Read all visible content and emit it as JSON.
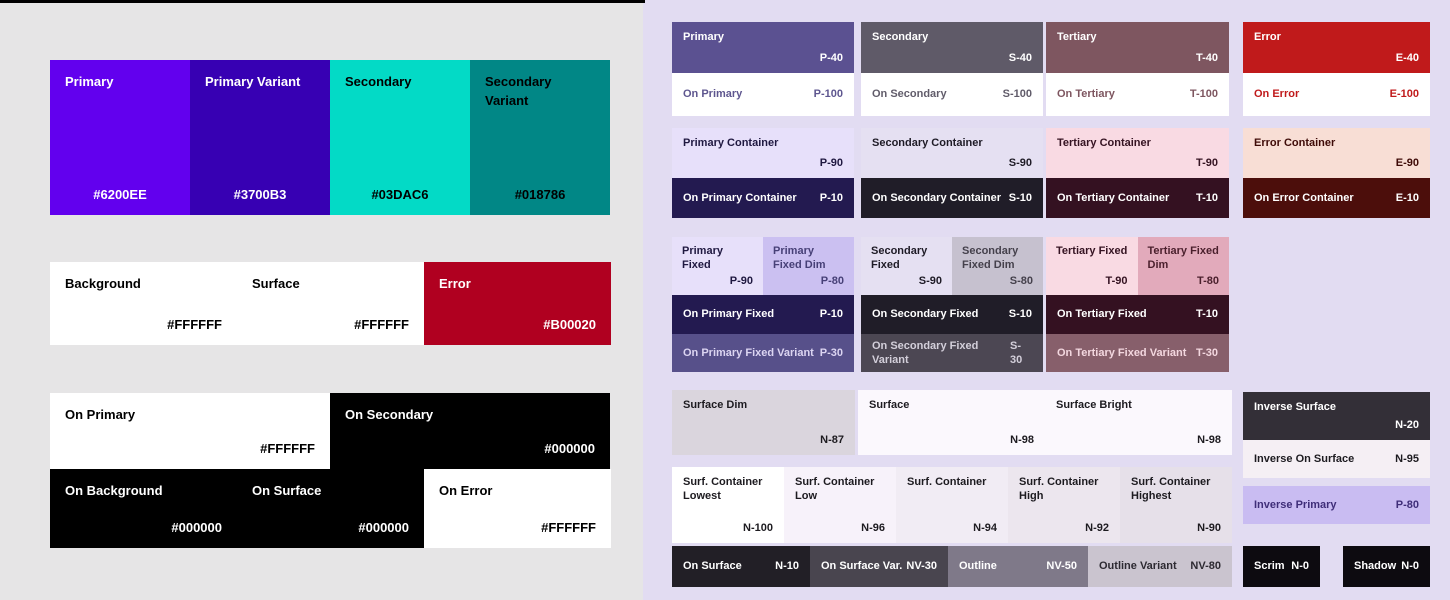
{
  "page": {
    "left_bg": "#E6E5E6",
    "right_bg": "#E2DCF2",
    "topbar_color": "#000000"
  },
  "m2": {
    "row1": [
      {
        "label": "Primary",
        "hex": "#6200EE",
        "bg": "#6200EE",
        "fg": "#FFFFFF"
      },
      {
        "label": "Primary Variant",
        "hex": "#3700B3",
        "bg": "#3700B3",
        "fg": "#FFFFFF"
      },
      {
        "label": "Secondary",
        "hex": "#03DAC6",
        "bg": "#03DAC6",
        "fg": "#000000"
      },
      {
        "label": "Secondary Variant",
        "hex": "#018786",
        "bg": "#018786",
        "fg": "#000000"
      }
    ],
    "row2": [
      {
        "label": "Background",
        "hex": "#FFFFFF",
        "bg": "#FFFFFF",
        "fg": "#000000"
      },
      {
        "label": "Surface",
        "hex": "#FFFFFF",
        "bg": "#FFFFFF",
        "fg": "#000000"
      },
      {
        "label": "Error",
        "hex": "#B00020",
        "bg": "#B00020",
        "fg": "#FFFFFF"
      }
    ],
    "row3": [
      {
        "label": "On Primary",
        "hex": "#FFFFFF",
        "bg": "#FFFFFF",
        "fg": "#000000"
      },
      {
        "label": "On Secondary",
        "hex": "#000000",
        "bg": "#000000",
        "fg": "#FFFFFF"
      }
    ],
    "row4": [
      {
        "label": "On Background",
        "hex": "#000000",
        "bg": "#000000",
        "fg": "#FFFFFF"
      },
      {
        "label": "On Surface",
        "hex": "#000000",
        "bg": "#000000",
        "fg": "#FFFFFF"
      },
      {
        "label": "On Error",
        "hex": "#FFFFFF",
        "bg": "#FFFFFF",
        "fg": "#000000"
      }
    ]
  },
  "m3": {
    "primary": {
      "main": {
        "label": "Primary",
        "value": "P-40",
        "bg": "#5B5191",
        "fg": "#FFFFFF"
      },
      "on_main": {
        "label": "On Primary",
        "value": "P-100",
        "bg": "#FFFFFF",
        "fg": "#5E568F"
      },
      "container": {
        "label": "Primary Container",
        "value": "P-90",
        "bg": "#E7E0FA",
        "fg": "#1F1840"
      },
      "on_container": {
        "label": "On Primary Container",
        "value": "P-10",
        "bg": "#231A50",
        "fg": "#FFFFFF"
      },
      "fixed": {
        "label": "Primary Fixed",
        "value": "P-90",
        "bg": "#E7E0FA",
        "fg": "#1F1840"
      },
      "fixed_dim": {
        "label": "Primary Fixed Dim",
        "value": "P-80",
        "bg": "#CBC0F1",
        "fg": "#474077"
      },
      "on_fixed": {
        "label": "On Primary Fixed",
        "value": "P-10",
        "bg": "#231A50",
        "fg": "#FFFFFF"
      },
      "on_fixed_variant": {
        "label": "On Primary Fixed Variant",
        "value": "P-30",
        "bg": "#57508A",
        "fg": "#DCD5F2"
      }
    },
    "secondary": {
      "main": {
        "label": "Secondary",
        "value": "S-40",
        "bg": "#5F5A68",
        "fg": "#FFFFFF"
      },
      "on_main": {
        "label": "On Secondary",
        "value": "S-100",
        "bg": "#FFFFFF",
        "fg": "#615C6A"
      },
      "container": {
        "label": "Secondary Container",
        "value": "S-90",
        "bg": "#E5E0F2",
        "fg": "#1E1B26"
      },
      "on_container": {
        "label": "On Secondary Container",
        "value": "S-10",
        "bg": "#201D28",
        "fg": "#FFFFFF"
      },
      "fixed": {
        "label": "Secondary Fixed",
        "value": "S-90",
        "bg": "#E5E0F2",
        "fg": "#1E1B26"
      },
      "fixed_dim": {
        "label": "Secondary Fixed Dim",
        "value": "S-80",
        "bg": "#C6C1CF",
        "fg": "#45414C"
      },
      "on_fixed": {
        "label": "On Secondary Fixed",
        "value": "S-10",
        "bg": "#201D28",
        "fg": "#FFFFFF"
      },
      "on_fixed_variant": {
        "label": "On Secondary Fixed Variant",
        "value": "S-30",
        "bg": "#4C4753",
        "fg": "#D3CFDA"
      }
    },
    "tertiary": {
      "main": {
        "label": "Tertiary",
        "value": "T-40",
        "bg": "#7E5660",
        "fg": "#FFFFFF"
      },
      "on_main": {
        "label": "On Tertiary",
        "value": "T-100",
        "bg": "#FFFFFF",
        "fg": "#7E5660"
      },
      "container": {
        "label": "Tertiary Container",
        "value": "T-90",
        "bg": "#F9DAE3",
        "fg": "#351322"
      },
      "on_container": {
        "label": "On Tertiary Container",
        "value": "T-10",
        "bg": "#341121",
        "fg": "#FFFFFF"
      },
      "fixed": {
        "label": "Tertiary Fixed",
        "value": "T-90",
        "bg": "#F9DAE3",
        "fg": "#351322"
      },
      "fixed_dim": {
        "label": "Tertiary Fixed Dim",
        "value": "T-80",
        "bg": "#E2AABB",
        "fg": "#4A1F2C"
      },
      "on_fixed": {
        "label": "On Tertiary Fixed",
        "value": "T-10",
        "bg": "#341121",
        "fg": "#FFFFFF"
      },
      "on_fixed_variant": {
        "label": "On Tertiary Fixed Variant",
        "value": "T-30",
        "bg": "#875F6B",
        "fg": "#F3D7DF"
      }
    },
    "error": {
      "main": {
        "label": "Error",
        "value": "E-40",
        "bg": "#C01A1B",
        "fg": "#FFFFFF"
      },
      "on_main": {
        "label": "On Error",
        "value": "E-100",
        "bg": "#FFFFFF",
        "fg": "#C01A1B"
      },
      "container": {
        "label": "Error Container",
        "value": "E-90",
        "bg": "#F8DED5",
        "fg": "#3E0A07"
      },
      "on_container": {
        "label": "On Error Container",
        "value": "E-10",
        "bg": "#4C0E0B",
        "fg": "#FFFFFF"
      }
    },
    "surface": {
      "dim": {
        "label": "Surface Dim",
        "value": "N-87",
        "bg": "#DAD5DD",
        "fg": "#1D1B20"
      },
      "pair_bg": "#FBF8FD",
      "surface": {
        "label": "Surface",
        "value": "N-98",
        "fg": "#1D1B20"
      },
      "bright": {
        "label": "Surface Bright",
        "value": "N-98",
        "fg": "#1D1B20"
      }
    },
    "containers": [
      {
        "label": "Surf. Container Lowest",
        "value": "N-100",
        "bg": "#FFFFFF",
        "fg": "#1D1B20"
      },
      {
        "label": "Surf. Container Low",
        "value": "N-96",
        "bg": "#F7F2FA",
        "fg": "#1D1B20"
      },
      {
        "label": "Surf. Container",
        "value": "N-94",
        "bg": "#F1ECF4",
        "fg": "#1D1B20"
      },
      {
        "label": "Surf. Container High",
        "value": "N-92",
        "bg": "#ECE6EE",
        "fg": "#1D1B20"
      },
      {
        "label": "Surf. Container Highest",
        "value": "N-90",
        "bg": "#E6E0E9",
        "fg": "#1D1B20"
      }
    ],
    "bottom": [
      {
        "label": "On Surface",
        "value": "N-10",
        "bg": "#221F26",
        "fg": "#FFFFFF"
      },
      {
        "label": "On Surface Var.",
        "value": "NV-30",
        "bg": "#49454F",
        "fg": "#FFFFFF"
      },
      {
        "label": "Outline",
        "value": "NV-50",
        "bg": "#7F7989",
        "fg": "#FFFFFF"
      },
      {
        "label": "Outline Variant",
        "value": "NV-80",
        "bg": "#CAC4CF",
        "fg": "#2D2A32"
      }
    ],
    "inverse": {
      "surface": {
        "label": "Inverse Surface",
        "value": "N-20",
        "bg": "#332F37",
        "fg": "#FFFFFF"
      },
      "on_surface": {
        "label": "Inverse On Surface",
        "value": "N-95",
        "bg": "#F5EFF4",
        "fg": "#1D1B20"
      },
      "primary": {
        "label": "Inverse Primary",
        "value": "P-80",
        "bg": "#C9BCF2",
        "fg": "#3F2E79"
      }
    },
    "scrim": {
      "label": "Scrim",
      "value": "N-0",
      "bg": "#0D0B10",
      "fg": "#FFFFFF"
    },
    "shadow": {
      "label": "Shadow",
      "value": "N-0",
      "bg": "#0D0B10",
      "fg": "#FFFFFF"
    }
  }
}
